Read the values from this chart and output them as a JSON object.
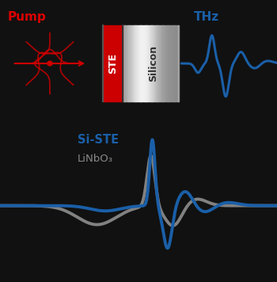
{
  "background_color": "#111111",
  "pump_label": "Pump",
  "pump_label_color": "#dd0000",
  "ste_label": "STE",
  "silicon_label": "Silicon",
  "thz_label": "THz",
  "thz_label_color": "#1a5fa8",
  "legend_si_ste": "Si-STE",
  "legend_linbo3": "LiNbO₃",
  "legend_si_ste_color": "#1a5fa8",
  "legend_linbo3_color": "#888888",
  "blue_color": "#1a5fa8",
  "red_color": "#cc0000",
  "gray_color": "#888888",
  "fig_w": 3.5,
  "fig_h": 3.56,
  "dpi": 100
}
